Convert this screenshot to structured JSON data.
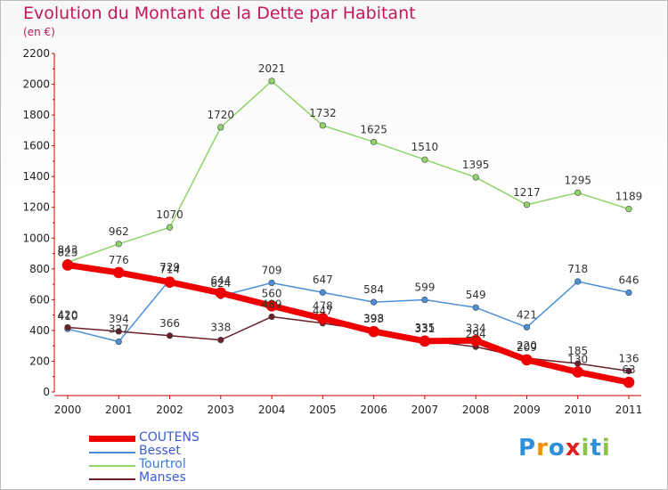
{
  "header": {
    "title": "Evolution du Montant de la Dette par Habitant",
    "unit": "(en €)"
  },
  "colors": {
    "title": "#c2185b",
    "COUTENS": "#ee0000",
    "Besset": "#4a90d9",
    "Tourtrol": "#8ed46a",
    "Manses": "#6b1f2a"
  },
  "logo": {
    "text": "Proxiti",
    "letters": [
      "P",
      "r",
      "o",
      "x",
      "i",
      "t",
      "i"
    ],
    "colors": [
      "#2f8fd8",
      "#f08c00",
      "#2f8fd8",
      "#e02020",
      "#8bc34a",
      "#2f8fd8",
      "#8bc34a"
    ]
  },
  "chart_data": {
    "type": "line",
    "title": "Evolution du Montant de la Dette par Habitant",
    "ylabel": "(en €)",
    "xlabel": "",
    "x": [
      "2000",
      "2001",
      "2002",
      "2003",
      "2004",
      "2005",
      "2006",
      "2007",
      "2008",
      "2009",
      "2010",
      "2011"
    ],
    "ylim": [
      0,
      2200
    ],
    "yticks": [
      0,
      200,
      400,
      600,
      800,
      1000,
      1200,
      1400,
      1600,
      1800,
      2000,
      2200
    ],
    "grid": false,
    "legend_position": "bottom-left",
    "series": [
      {
        "name": "COUTENS",
        "color": "#ee0000",
        "width": 7,
        "values": [
          825,
          776,
          714,
          644,
          560,
          478,
          393,
          331,
          334,
          209,
          130,
          63
        ],
        "labels": [
          825,
          776,
          714,
          644,
          560,
          478,
          393,
          331,
          334,
          209,
          130,
          63
        ]
      },
      {
        "name": "Besset",
        "color": "#4a90d9",
        "width": 1.5,
        "values": [
          410,
          327,
          729,
          624,
          709,
          647,
          584,
          599,
          549,
          421,
          718,
          646
        ],
        "labels": [
          410,
          327,
          729,
          624,
          709,
          647,
          584,
          599,
          549,
          421,
          718,
          646
        ]
      },
      {
        "name": "Tourtrol",
        "color": "#8ed46a",
        "width": 1.5,
        "values": [
          843,
          962,
          1070,
          1720,
          2021,
          1732,
          1625,
          1510,
          1395,
          1217,
          1295,
          1189
        ],
        "labels": [
          843,
          962,
          1070,
          1720,
          2021,
          1732,
          1625,
          1510,
          1395,
          1217,
          1295,
          1189
        ]
      },
      {
        "name": "Manses",
        "color": "#6b1f2a",
        "width": 1.5,
        "values": [
          420,
          394,
          366,
          338,
          489,
          447,
          398,
          335,
          294,
          220,
          185,
          136
        ],
        "labels": [
          420,
          394,
          366,
          338,
          489,
          447,
          398,
          335,
          294,
          220,
          185,
          136
        ]
      }
    ]
  }
}
